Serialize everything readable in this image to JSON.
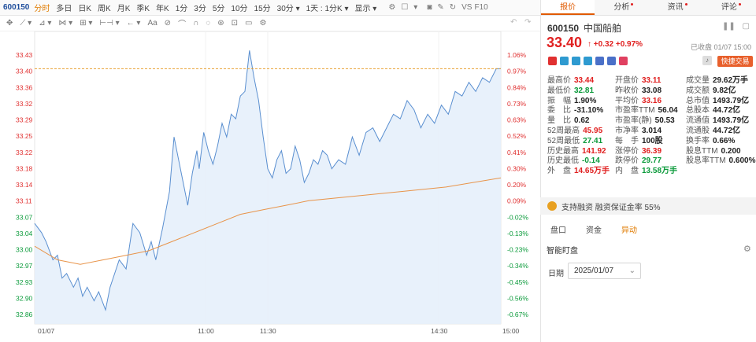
{
  "toolbar": {
    "stock_code": "600150",
    "periods": [
      "分时",
      "多日",
      "日K",
      "周K",
      "月K",
      "季K",
      "年K",
      "1分",
      "3分",
      "5分",
      "10分",
      "15分",
      "30分 ▾",
      "1天 : 1分K ▾"
    ],
    "display_label": "显示 ▾",
    "vs_label": "VS",
    "f10_label": "F10"
  },
  "draw_tools": [
    "✥",
    "⟋ ▾",
    "⊿ ▾",
    "⋈ ▾",
    "⊞ ▾",
    "⊢⊣ ▾",
    "← ▾",
    "Aa",
    "⊘",
    "⌒",
    "∩",
    "◌",
    "⊛",
    "⊡",
    "▭",
    "⚙"
  ],
  "chart_data": {
    "type": "line",
    "title": "",
    "xlabel": "",
    "ylabel": "",
    "prev_close": 33.08,
    "ylim": [
      32.85,
      33.44
    ],
    "y_ticks": [
      "33.43",
      "33.40",
      "33.36",
      "33.32",
      "33.29",
      "33.25",
      "33.22",
      "33.18",
      "33.14",
      "33.11",
      "33.07",
      "33.04",
      "33.00",
      "32.97",
      "32.93",
      "32.90",
      "32.86"
    ],
    "pct_ticks": [
      "1.06%",
      "0.97%",
      "0.84%",
      "0.73%",
      "0.63%",
      "0.52%",
      "0.41%",
      "0.30%",
      "0.20%",
      "0.09%",
      "-0.02%",
      "-0.13%",
      "-0.23%",
      "-0.34%",
      "-0.45%",
      "-0.56%",
      "-0.67%"
    ],
    "x_ticks": [
      "01/07",
      "11:00",
      "11:30",
      "14:30",
      "15:00"
    ],
    "current_price_label": "33.40",
    "current_pct_label": "0.97%",
    "series": [
      {
        "name": "price",
        "color": "#5a8fd0",
        "points": [
          [
            0,
            33.06
          ],
          [
            3,
            33.04
          ],
          [
            5,
            33.02
          ],
          [
            8,
            32.98
          ],
          [
            10,
            32.99
          ],
          [
            12,
            32.94
          ],
          [
            14,
            32.95
          ],
          [
            17,
            32.92
          ],
          [
            19,
            32.94
          ],
          [
            21,
            32.9
          ],
          [
            23,
            32.92
          ],
          [
            26,
            32.89
          ],
          [
            28,
            32.91
          ],
          [
            31,
            32.87
          ],
          [
            33,
            32.92
          ],
          [
            35,
            32.95
          ],
          [
            37,
            32.98
          ],
          [
            40,
            32.96
          ],
          [
            43,
            33.06
          ],
          [
            46,
            33.04
          ],
          [
            49,
            32.99
          ],
          [
            51,
            33.02
          ],
          [
            53,
            32.98
          ],
          [
            56,
            33.05
          ],
          [
            59,
            33.13
          ],
          [
            61,
            33.25
          ],
          [
            63,
            33.2
          ],
          [
            65,
            33.15
          ],
          [
            67,
            33.1
          ],
          [
            69,
            33.17
          ],
          [
            71,
            33.22
          ],
          [
            72,
            33.18
          ],
          [
            74,
            33.26
          ],
          [
            76,
            33.22
          ],
          [
            78,
            33.19
          ],
          [
            80,
            33.23
          ],
          [
            82,
            33.28
          ],
          [
            84,
            33.25
          ],
          [
            86,
            33.3
          ],
          [
            88,
            33.29
          ],
          [
            90,
            33.34
          ],
          [
            92,
            33.35
          ],
          [
            94,
            33.44
          ],
          [
            96,
            33.38
          ],
          [
            98,
            33.33
          ],
          [
            100,
            33.25
          ],
          [
            102,
            33.18
          ],
          [
            104,
            33.16
          ],
          [
            106,
            33.2
          ],
          [
            108,
            33.22
          ],
          [
            110,
            33.17
          ],
          [
            112,
            33.18
          ],
          [
            114,
            33.23
          ],
          [
            116,
            33.2
          ],
          [
            118,
            33.15
          ],
          [
            120,
            33.17
          ],
          [
            122,
            33.2
          ],
          [
            124,
            33.19
          ],
          [
            126,
            33.22
          ],
          [
            128,
            33.21
          ],
          [
            130,
            33.18
          ],
          [
            133,
            33.2
          ],
          [
            136,
            33.19
          ],
          [
            139,
            33.25
          ],
          [
            142,
            33.21
          ],
          [
            145,
            33.26
          ],
          [
            148,
            33.27
          ],
          [
            151,
            33.24
          ],
          [
            154,
            33.27
          ],
          [
            157,
            33.3
          ],
          [
            160,
            33.29
          ],
          [
            163,
            33.33
          ],
          [
            166,
            33.31
          ],
          [
            169,
            33.27
          ],
          [
            172,
            33.3
          ],
          [
            175,
            33.28
          ],
          [
            178,
            33.32
          ],
          [
            181,
            33.3
          ],
          [
            184,
            33.35
          ],
          [
            187,
            33.34
          ],
          [
            190,
            33.37
          ],
          [
            193,
            33.35
          ],
          [
            196,
            33.38
          ],
          [
            199,
            33.37
          ],
          [
            202,
            33.4
          ],
          [
            204,
            33.4
          ]
        ]
      },
      {
        "name": "avg",
        "color": "#e8944a",
        "points": [
          [
            0,
            33.01
          ],
          [
            10,
            32.98
          ],
          [
            20,
            32.97
          ],
          [
            30,
            32.98
          ],
          [
            40,
            32.99
          ],
          [
            50,
            33.0
          ],
          [
            60,
            33.02
          ],
          [
            70,
            33.04
          ],
          [
            80,
            33.06
          ],
          [
            90,
            33.08
          ],
          [
            100,
            33.09
          ],
          [
            110,
            33.1
          ],
          [
            120,
            33.11
          ],
          [
            140,
            33.12
          ],
          [
            160,
            33.13
          ],
          [
            180,
            33.14
          ],
          [
            204,
            33.16
          ]
        ]
      }
    ]
  },
  "tabs": [
    {
      "label": "报价",
      "dot": false
    },
    {
      "label": "分析",
      "dot": true
    },
    {
      "label": "资讯",
      "dot": true
    },
    {
      "label": "评论",
      "dot": true
    }
  ],
  "quote": {
    "code": "600150",
    "name": "中国船舶",
    "price": "33.40",
    "arrow": "↑",
    "change": "+0.32",
    "change_pct": "+0.97%",
    "status": "已收盘 01/07 15:00",
    "trade_label": "快捷交易",
    "badge_colors": [
      "#e03030",
      "#2e9ad0",
      "#2e9ad0",
      "#2e9ad0",
      "#4a70c8",
      "#4a70c8",
      "#e04060"
    ]
  },
  "stats": [
    [
      {
        "l": "最高价",
        "v": "33.44",
        "c": "red"
      },
      {
        "l": "开盘价",
        "v": "33.11",
        "c": "red"
      },
      {
        "l": "成交量",
        "v": "29.62万手",
        "c": "blk"
      }
    ],
    [
      {
        "l": "最低价",
        "v": "32.81",
        "c": "green"
      },
      {
        "l": "昨收价",
        "v": "33.08",
        "c": "blk"
      },
      {
        "l": "成交额",
        "v": "9.82亿",
        "c": "blk"
      }
    ],
    [
      {
        "l": "振　幅",
        "v": "1.90%",
        "c": "blk"
      },
      {
        "l": "平均价",
        "v": "33.16",
        "c": "red"
      },
      {
        "l": "总市值",
        "v": "1493.79亿",
        "c": "blk"
      }
    ],
    [
      {
        "l": "委　比",
        "v": "-31.10%",
        "c": "blk"
      },
      {
        "l": "市盈率TTM",
        "v": "56.04",
        "c": "blk"
      },
      {
        "l": "总股本",
        "v": "44.72亿",
        "c": "blk"
      }
    ],
    [
      {
        "l": "量　比",
        "v": "0.62",
        "c": "blk"
      },
      {
        "l": "市盈率(静)",
        "v": "50.53",
        "c": "blk"
      },
      {
        "l": "流通值",
        "v": "1493.79亿",
        "c": "blk"
      }
    ],
    [
      {
        "l": "52周最高",
        "v": "45.95",
        "c": "red"
      },
      {
        "l": "市净率",
        "v": "3.014",
        "c": "blk"
      },
      {
        "l": "流通股",
        "v": "44.72亿",
        "c": "blk"
      }
    ],
    [
      {
        "l": "52周最低",
        "v": "27.41",
        "c": "green"
      },
      {
        "l": "每　手",
        "v": "100股",
        "c": "blk"
      },
      {
        "l": "换手率",
        "v": "0.66%",
        "c": "blk"
      }
    ],
    [
      {
        "l": "历史最高",
        "v": "141.92",
        "c": "red"
      },
      {
        "l": "涨停价",
        "v": "36.39",
        "c": "red"
      },
      {
        "l": "股息TTM",
        "v": "0.200",
        "c": "blk"
      }
    ],
    [
      {
        "l": "历史最低",
        "v": "-0.14",
        "c": "green"
      },
      {
        "l": "跌停价",
        "v": "29.77",
        "c": "green"
      },
      {
        "l": "股息率TTM",
        "v": "0.600%",
        "c": "blk"
      }
    ],
    [
      {
        "l": "外　盘",
        "v": "14.65万手",
        "c": "red"
      },
      {
        "l": "内　盘",
        "v": "13.58万手",
        "c": "green"
      },
      {
        "l": "",
        "v": "",
        "c": "blk"
      }
    ]
  ],
  "margin_text": "支持融资 融资保证金率 55%",
  "sub_tabs": [
    {
      "label": "盘口",
      "active": false
    },
    {
      "label": "资金",
      "active": false
    },
    {
      "label": "异动",
      "active": true
    }
  ],
  "smart": {
    "title": "智能盯盘",
    "date_label": "日期",
    "date_value": "2025/01/07"
  }
}
